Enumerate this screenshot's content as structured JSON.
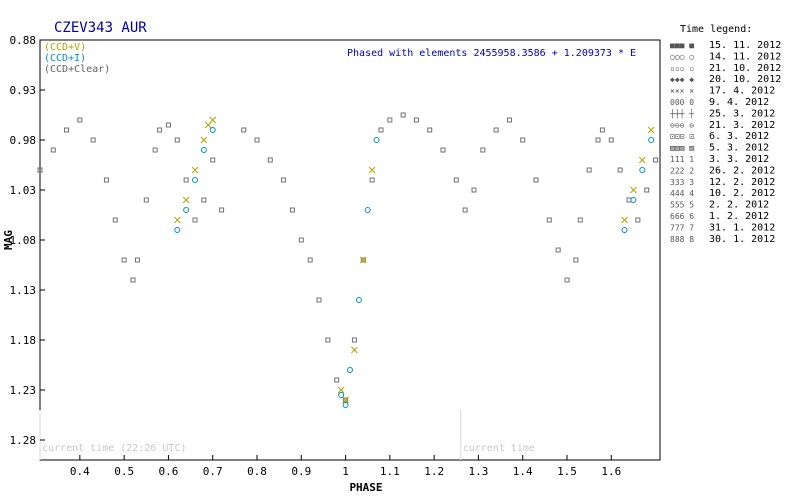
{
  "chart_data": {
    "type": "scatter",
    "title": "CZEV343 AUR",
    "annotation": "Phased with elements 2455958.3586 + 1.209373 * E",
    "xlabel": "PHASE",
    "ylabel": "MAG",
    "xlim": [
      0.31,
      1.71
    ],
    "ylim": [
      0.88,
      1.3
    ],
    "y_inverted": false,
    "x_ticks": [
      "0.4",
      "0.5",
      "0.6",
      "0.7",
      "0.8",
      "0.9",
      "1",
      "1.1",
      "1.2",
      "1.3",
      "1.4",
      "1.5",
      "1.6"
    ],
    "x_tick_values": [
      0.4,
      0.5,
      0.6,
      0.7,
      0.8,
      0.9,
      1.0,
      1.1,
      1.2,
      1.3,
      1.4,
      1.5,
      1.6
    ],
    "y_ticks": [
      "0.88",
      "0.93",
      "0.98",
      "1.03",
      "1.08",
      "1.13",
      "1.18",
      "1.23",
      "1.28"
    ],
    "y_tick_values": [
      0.88,
      0.93,
      0.98,
      1.03,
      1.08,
      1.13,
      1.18,
      1.23,
      1.28
    ],
    "grid": false,
    "filters": [
      {
        "label": "(CCD+V)",
        "color": "#b8a000"
      },
      {
        "label": "(CCD+I)",
        "color": "#0090c0"
      },
      {
        "label": "(CCD+Clear)",
        "color": "#606060"
      }
    ],
    "current_time_markers": [
      {
        "label": "current time (22:26 UTC)",
        "x": 0.31
      },
      {
        "label": "current time",
        "x": 1.26
      }
    ],
    "legend_title": "Time legend:",
    "legend_placement": "right",
    "legend": [
      {
        "sym": "■■■ ■",
        "date": "15. 11. 2012"
      },
      {
        "sym": "○○○ ○",
        "date": "14. 11. 2012"
      },
      {
        "sym": "▫▫▫ ▫",
        "date": "21. 10. 2012"
      },
      {
        "sym": "◆◆◆ ◆",
        "date": "20. 10. 2012"
      },
      {
        "sym": "××× ×",
        "date": "17. 4. 2012"
      },
      {
        "sym": "000 0",
        "date": "9. 4. 2012"
      },
      {
        "sym": "┼┼┼ ┼",
        "date": "25. 3. 2012"
      },
      {
        "sym": "⊖⊖⊖ ⊖",
        "date": "21. 3. 2012"
      },
      {
        "sym": "⊡⊡⊡ ⊡",
        "date": "6. 3. 2012"
      },
      {
        "sym": "▨▨▨ ▨",
        "date": "5. 3. 2012"
      },
      {
        "sym": "111 1",
        "date": "3. 3. 2012"
      },
      {
        "sym": "222 2",
        "date": "26. 2. 2012"
      },
      {
        "sym": "333 3",
        "date": "12. 2. 2012"
      },
      {
        "sym": "444 4",
        "date": "10. 2. 2012"
      },
      {
        "sym": "555 5",
        "date": "2. 2. 2012"
      },
      {
        "sym": "666 6",
        "date": "1. 2. 2012"
      },
      {
        "sym": "777 7",
        "date": "31. 1. 2012"
      },
      {
        "sym": "888 8",
        "date": "30. 1. 2012"
      }
    ],
    "series": [
      {
        "name": "(CCD+Clear)",
        "color": "#707070",
        "x": [
          0.31,
          0.34,
          0.37,
          0.4,
          0.43,
          0.46,
          0.48,
          0.5,
          0.52,
          0.53,
          0.55,
          0.57,
          0.58,
          0.6,
          0.62,
          0.64,
          0.66,
          0.68,
          0.7,
          0.72,
          0.77,
          0.8,
          0.83,
          0.86,
          0.88,
          0.9,
          0.92,
          0.94,
          0.96,
          0.98,
          1.0,
          1.02,
          1.04,
          1.06,
          1.08,
          1.1,
          1.13,
          1.16,
          1.19,
          1.22,
          1.25,
          1.27,
          1.29,
          1.31,
          1.34,
          1.37,
          1.4,
          1.43,
          1.46,
          1.48,
          1.5,
          1.52,
          1.53,
          1.55,
          1.57,
          1.58,
          1.6,
          1.62,
          1.64,
          1.66,
          1.68,
          1.7
        ],
        "y": [
          1.01,
          0.99,
          0.97,
          0.96,
          0.98,
          1.02,
          1.06,
          1.1,
          1.12,
          1.1,
          1.04,
          0.99,
          0.97,
          0.965,
          0.98,
          1.02,
          1.06,
          1.04,
          1.0,
          1.05,
          0.97,
          0.98,
          1.0,
          1.02,
          1.05,
          1.08,
          1.1,
          1.14,
          1.18,
          1.22,
          1.24,
          1.18,
          1.1,
          1.02,
          0.97,
          0.96,
          0.955,
          0.96,
          0.97,
          0.99,
          1.02,
          1.05,
          1.03,
          0.99,
          0.97,
          0.96,
          0.98,
          1.02,
          1.06,
          1.09,
          1.12,
          1.1,
          1.06,
          1.01,
          0.98,
          0.97,
          0.98,
          1.01,
          1.04,
          1.06,
          1.03,
          1.0
        ]
      },
      {
        "name": "(CCD+V)",
        "color": "#b8a000",
        "x": [
          0.62,
          0.64,
          0.66,
          0.68,
          0.69,
          0.7,
          0.99,
          1.0,
          1.02,
          1.04,
          1.06,
          1.63,
          1.65,
          1.67,
          1.69
        ],
        "y": [
          1.06,
          1.04,
          1.01,
          0.98,
          0.965,
          0.96,
          1.23,
          1.24,
          1.19,
          1.1,
          1.01,
          1.06,
          1.03,
          1.0,
          0.97
        ]
      },
      {
        "name": "(CCD+I)",
        "color": "#0090c0",
        "x": [
          0.62,
          0.64,
          0.66,
          0.68,
          0.7,
          0.99,
          1.0,
          1.01,
          1.03,
          1.05,
          1.07,
          1.63,
          1.65,
          1.67,
          1.69
        ],
        "y": [
          1.07,
          1.05,
          1.02,
          0.99,
          0.97,
          1.235,
          1.245,
          1.21,
          1.14,
          1.05,
          0.98,
          1.07,
          1.04,
          1.01,
          0.98
        ]
      }
    ]
  }
}
